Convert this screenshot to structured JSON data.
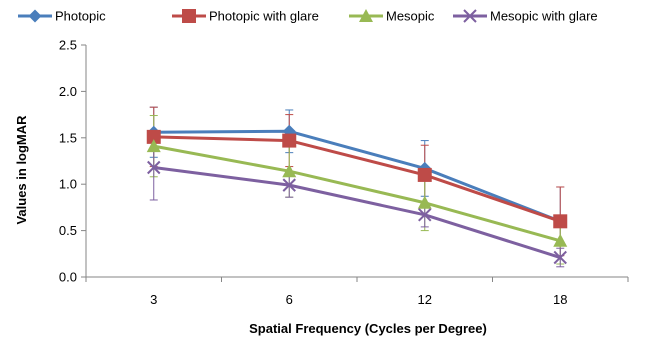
{
  "chart_data": {
    "type": "line",
    "title": "",
    "xlabel": "Spatial Frequency (Cycles per Degree)",
    "ylabel": "Values in logMAR",
    "categories": [
      "3",
      "6",
      "12",
      "18"
    ],
    "ylim": [
      0,
      2.5
    ],
    "yticks": [
      "0.0",
      "0.5",
      "1.0",
      "1.5",
      "2.0",
      "2.5"
    ],
    "grid": false,
    "legend_position": "top",
    "series": [
      {
        "name": "Photopic",
        "color": "#4a7ebb",
        "marker": "diamond",
        "values": [
          1.56,
          1.57,
          1.17,
          0.6
        ],
        "error": [
          0.27,
          0.23,
          0.3,
          0.37
        ]
      },
      {
        "name": "Photopic with glare",
        "color": "#be4b48",
        "marker": "square",
        "values": [
          1.51,
          1.47,
          1.1,
          0.6
        ],
        "error": [
          0.32,
          0.28,
          0.32,
          0.37
        ]
      },
      {
        "name": "Mesopic",
        "color": "#98b954",
        "marker": "triangle",
        "values": [
          1.41,
          1.14,
          0.8,
          0.39
        ],
        "error": [
          0.33,
          0.28,
          0.3,
          0.25
        ]
      },
      {
        "name": "Mesopic with glare",
        "color": "#7d60a0",
        "marker": "x",
        "values": [
          1.18,
          0.99,
          0.67,
          0.21
        ],
        "error": [
          0.35,
          0.13,
          0.13,
          0.1
        ]
      }
    ]
  }
}
